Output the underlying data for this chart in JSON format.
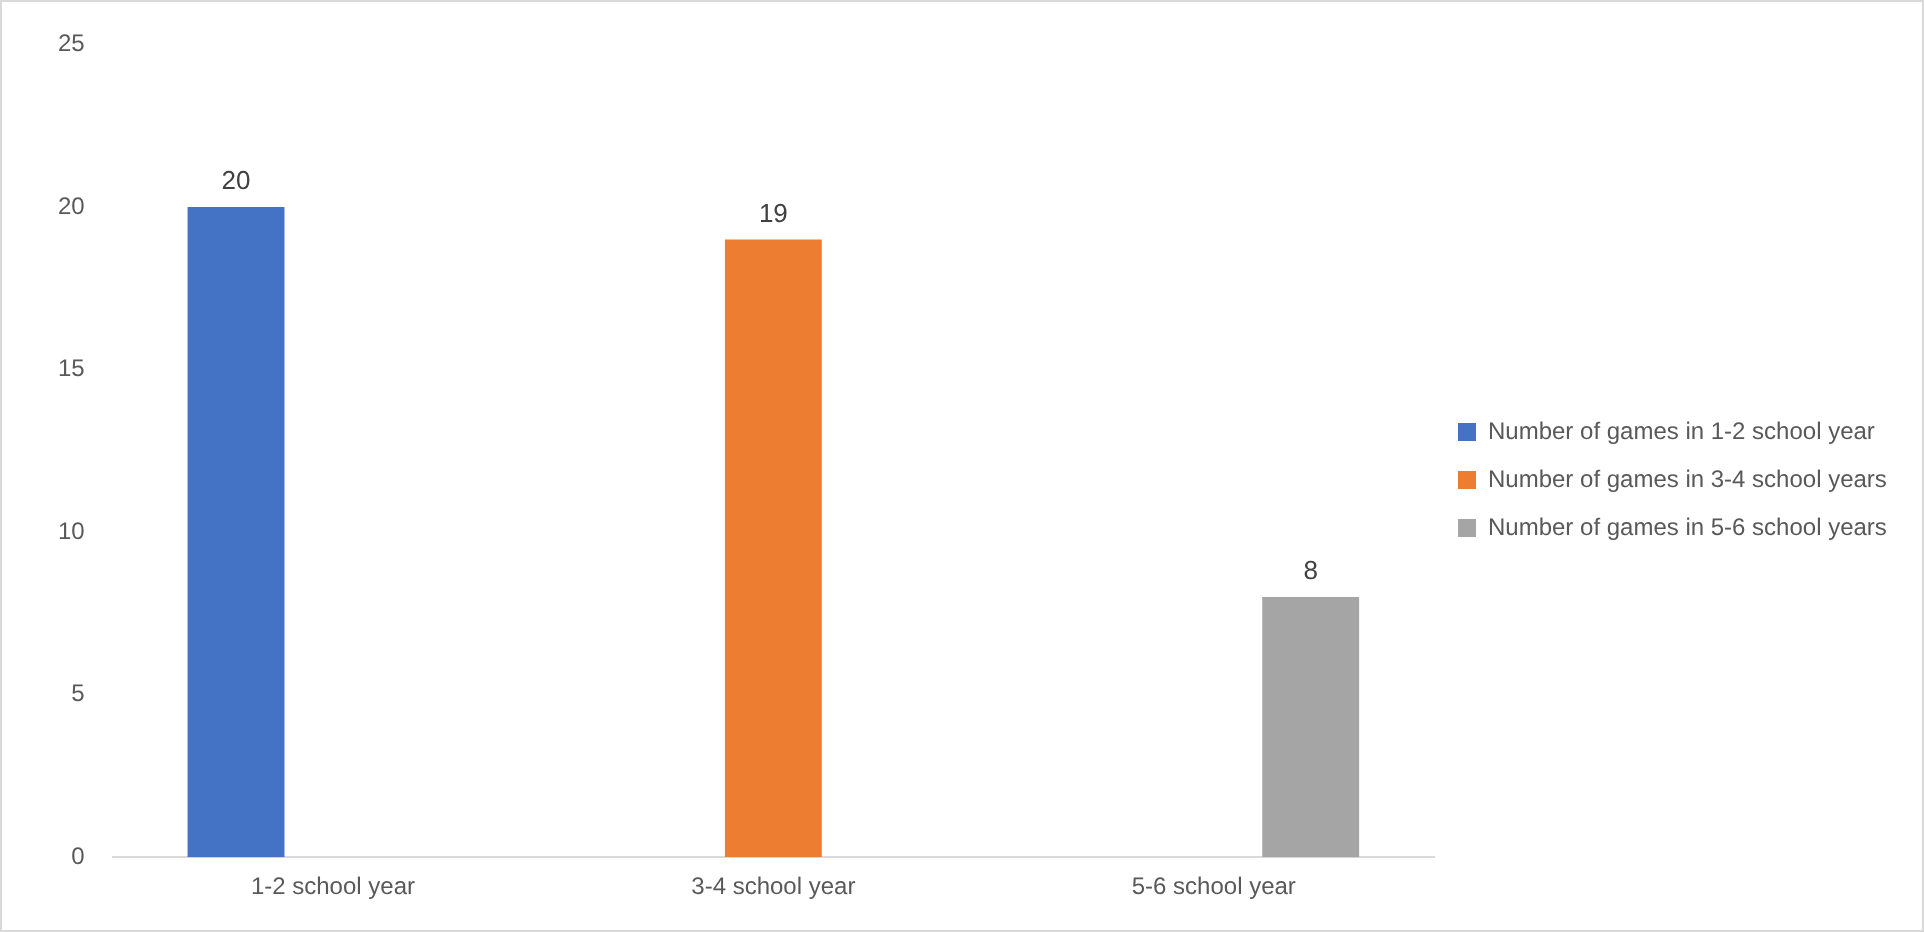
{
  "chart_data": {
    "type": "bar",
    "categories": [
      "1-2 school year",
      "3-4 school year",
      "5-6 school year"
    ],
    "series": [
      {
        "name": "Number of games in 1-2 school year",
        "color": "#4472c4",
        "values": [
          20,
          null,
          null
        ]
      },
      {
        "name": "Number of games in 3-4 school years",
        "color": "#ed7d31",
        "values": [
          null,
          19,
          null
        ]
      },
      {
        "name": "Number of games in 5-6 school years",
        "color": "#a5a5a5",
        "values": [
          null,
          null,
          8
        ]
      }
    ],
    "ylim": [
      0,
      25
    ],
    "yticks": [
      0,
      5,
      10,
      15,
      20,
      25
    ],
    "grid": false,
    "legend": "right",
    "data_labels": true
  }
}
